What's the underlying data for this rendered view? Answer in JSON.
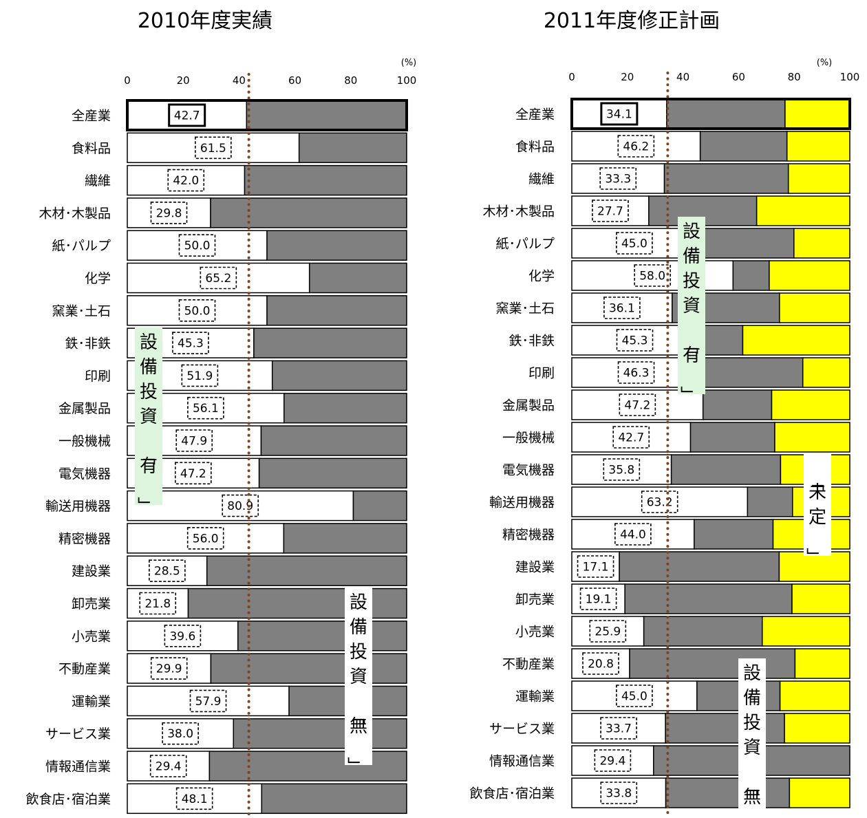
{
  "chart_data": [
    {
      "type": "bar",
      "stacked": true,
      "orientation": "horizontal",
      "title": "2010年度実績",
      "unit_label": "(%)",
      "xlim": [
        0,
        100
      ],
      "ticks": [
        "0",
        "20",
        "40",
        "60",
        "80",
        "100"
      ],
      "reference_value": 43.5,
      "categories": [
        "全産業",
        "食料品",
        "繊維",
        "木材･木製品",
        "紙･パルプ",
        "化学",
        "窯業･土石",
        "鉄･非鉄",
        "印刷",
        "金属製品",
        "一般機械",
        "電気機器",
        "輸送用機器",
        "精密機器",
        "建設業",
        "卸売業",
        "小売業",
        "不動産業",
        "運輸業",
        "サービス業",
        "情報通信業",
        "飲食店･宿泊業"
      ],
      "value_labels": [
        "42.7",
        "61.5",
        "42.0",
        "29.8",
        "50.0",
        "65.2",
        "50.0",
        "45.3",
        "51.9",
        "56.1",
        "47.9",
        "47.2",
        "80.9",
        "56.0",
        "28.5",
        "21.8",
        "39.6",
        "29.9",
        "57.9",
        "38.0",
        "29.4",
        "48.1"
      ],
      "series": [
        {
          "key": "yes",
          "color": "#ffffff",
          "values": [
            42.7,
            61.5,
            42.0,
            29.8,
            50.0,
            65.2,
            50.0,
            45.3,
            51.9,
            56.1,
            47.9,
            47.2,
            80.9,
            56.0,
            28.5,
            21.8,
            39.6,
            29.9,
            57.9,
            38.0,
            29.4,
            48.1
          ]
        },
        {
          "key": "no",
          "color": "#808080",
          "values": [
            57.3,
            38.5,
            58.0,
            70.2,
            50.0,
            34.8,
            50.0,
            54.7,
            48.1,
            43.9,
            52.1,
            52.8,
            19.1,
            44.0,
            71.5,
            78.2,
            60.4,
            70.1,
            42.1,
            62.0,
            70.6,
            51.9
          ]
        }
      ],
      "annotations": [
        {
          "key": "yes",
          "text": "設備投資「有」"
        },
        {
          "key": "no",
          "text": "設備投資「無」"
        }
      ]
    },
    {
      "type": "bar",
      "stacked": true,
      "orientation": "horizontal",
      "title": "2011年度修正計画",
      "unit_label": "(%)",
      "xlim": [
        0,
        100
      ],
      "ticks": [
        "0",
        "20",
        "40",
        "60",
        "80",
        "100"
      ],
      "reference_value": 34.5,
      "categories": [
        "全産業",
        "食料品",
        "繊維",
        "木材･木製品",
        "紙･パルプ",
        "化学",
        "窯業･土石",
        "鉄･非鉄",
        "印刷",
        "金属製品",
        "一般機械",
        "電気機器",
        "輸送用機器",
        "精密機器",
        "建設業",
        "卸売業",
        "小売業",
        "不動産業",
        "運輸業",
        "サービス業",
        "情報通信業",
        "飲食店･宿泊業"
      ],
      "value_labels": [
        "34.1",
        "46.2",
        "33.3",
        "27.7",
        "45.0",
        "58.0",
        "36.1",
        "45.3",
        "46.3",
        "47.2",
        "42.7",
        "35.8",
        "63.2",
        "44.0",
        "17.1",
        "19.1",
        "25.9",
        "20.8",
        "45.0",
        "33.7",
        "29.4",
        "33.8"
      ],
      "series": [
        {
          "key": "yes",
          "color": "#ffffff",
          "values": [
            34.1,
            46.2,
            33.3,
            27.7,
            45.0,
            58.0,
            36.1,
            45.3,
            46.3,
            47.2,
            42.7,
            35.8,
            63.2,
            44.0,
            17.1,
            19.1,
            25.9,
            20.8,
            45.0,
            33.7,
            29.4,
            33.8
          ]
        },
        {
          "key": "no",
          "color": "#808080",
          "values": [
            42.6,
            31.2,
            44.6,
            38.8,
            34.9,
            13.0,
            38.6,
            16.2,
            36.8,
            24.7,
            30.3,
            39.3,
            16.2,
            28.4,
            57.5,
            60.1,
            42.6,
            59.5,
            29.9,
            42.8,
            70.6,
            44.5
          ]
        },
        {
          "key": "undecided",
          "color": "#ffff00",
          "values": [
            23.3,
            22.6,
            22.1,
            33.5,
            20.1,
            29.0,
            25.3,
            38.5,
            16.9,
            28.1,
            27.0,
            24.9,
            20.6,
            27.6,
            25.4,
            20.8,
            31.5,
            19.7,
            25.1,
            23.5,
            0.0,
            21.7
          ]
        }
      ],
      "annotations": [
        {
          "key": "yes",
          "text": "設備投資「有」"
        },
        {
          "key": "no",
          "text": "設備投資「無」"
        },
        {
          "key": "undecided",
          "text": "「未定」"
        }
      ]
    }
  ]
}
